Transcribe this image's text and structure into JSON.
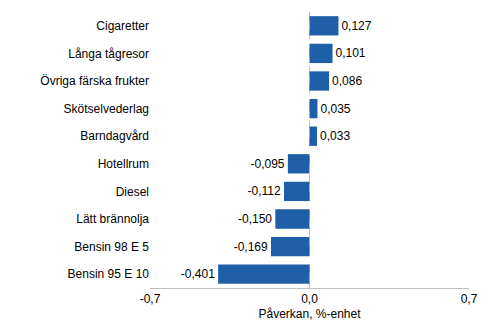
{
  "chart_data": {
    "type": "bar",
    "orientation": "horizontal",
    "categories": [
      "Cigaretter",
      "Långa tågresor",
      "Övriga färska frukter",
      "Skötselvederlag",
      "Barndagvård",
      "Hotellrum",
      "Diesel",
      "Lätt brännolja",
      "Bensin 98 E 5",
      "Bensin 95 E 10"
    ],
    "values": [
      0.127,
      0.101,
      0.086,
      0.035,
      0.033,
      -0.095,
      -0.112,
      -0.15,
      -0.169,
      -0.401
    ],
    "value_labels": [
      "0,127",
      "0,101",
      "0,086",
      "0,035",
      "0,033",
      "-0,095",
      "-0,112",
      "-0,150",
      "-0,169",
      "-0,401"
    ],
    "data_labels": true,
    "color": "#1f5fa8",
    "x_label": "Påverkan, %-enhet",
    "xlim": [
      -0.7,
      0.7
    ],
    "xticks": [
      {
        "value": -0.7,
        "label": "-0,7"
      },
      {
        "value": 0,
        "label": "0,0"
      },
      {
        "value": 0.7,
        "label": "0,7"
      }
    ],
    "grid": true
  }
}
